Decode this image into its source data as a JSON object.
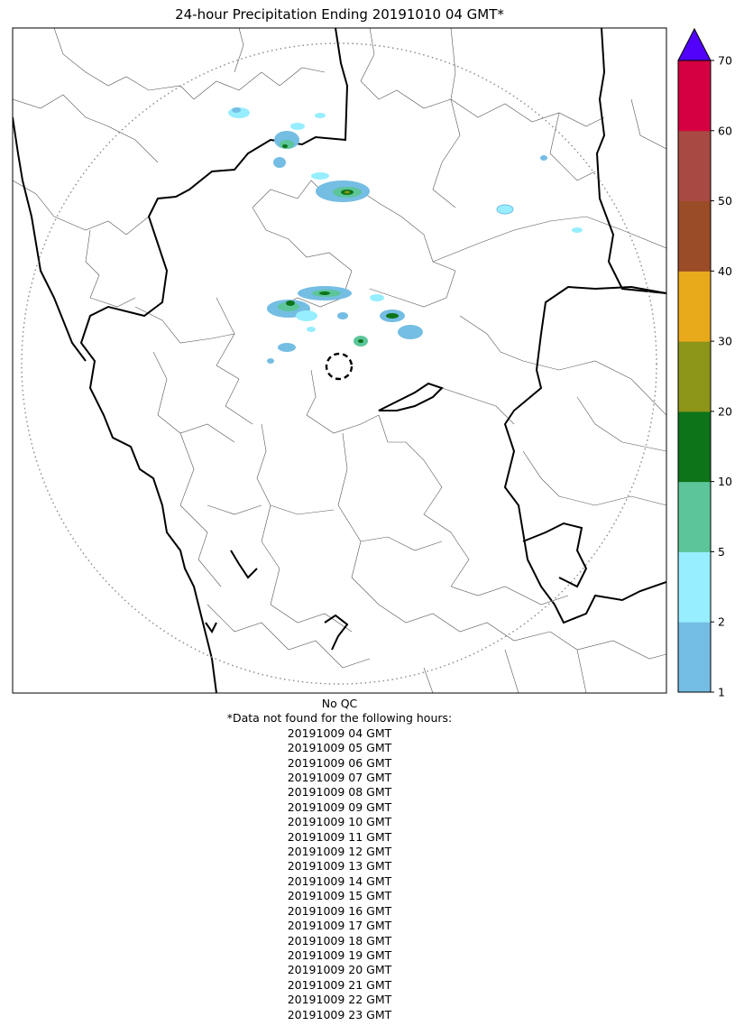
{
  "title": "24-hour Precipitation Ending 20191010 04 GMT*",
  "colorbar": {
    "boundaries": [
      1,
      2,
      5,
      10,
      20,
      30,
      40,
      50,
      60,
      70
    ],
    "tick_labels": [
      "1",
      "2",
      "5",
      "10",
      "20",
      "30",
      "40",
      "50",
      "60",
      "70"
    ],
    "colors": [
      "#74bde3",
      "#96eefe",
      "#5dc59a",
      "#0d7419",
      "#8c9517",
      "#e8a91b",
      "#9a4c26",
      "#a84a43",
      "#d40041"
    ],
    "over_color": "#5202fb",
    "extend": "max"
  },
  "map": {
    "range_ring": "dotted",
    "radar_marker": "dashed-circle"
  },
  "notes": {
    "qc": "No QC",
    "missing_header": "*Data not found for the following hours:",
    "missing_hours": [
      "20191009 04 GMT",
      "20191009 05 GMT",
      "20191009 06 GMT",
      "20191009 07 GMT",
      "20191009 08 GMT",
      "20191009 09 GMT",
      "20191009 10 GMT",
      "20191009 11 GMT",
      "20191009 12 GMT",
      "20191009 13 GMT",
      "20191009 14 GMT",
      "20191009 15 GMT",
      "20191009 16 GMT",
      "20191009 17 GMT",
      "20191009 18 GMT",
      "20191009 19 GMT",
      "20191009 20 GMT",
      "20191009 21 GMT",
      "20191009 22 GMT",
      "20191009 23 GMT"
    ]
  }
}
